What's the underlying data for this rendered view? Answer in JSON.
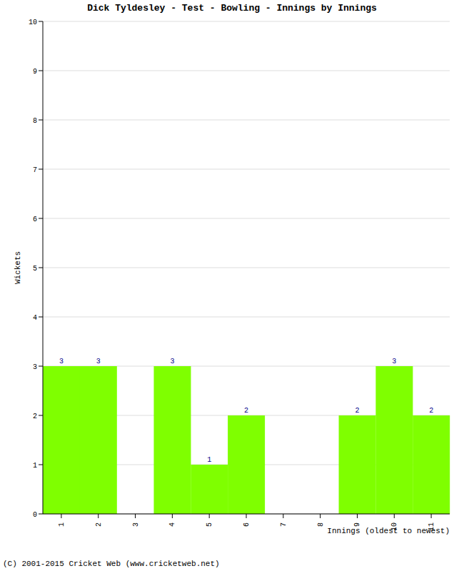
{
  "chart_data": {
    "type": "bar",
    "title": "Dick Tyldesley - Test - Bowling - Innings by Innings",
    "x_label": "Innings (oldest to newest)",
    "y_label": "Wickets",
    "categories": [
      "1",
      "2",
      "3",
      "4",
      "5",
      "6",
      "7",
      "8",
      "9",
      "10",
      "11"
    ],
    "values": [
      3,
      3,
      0,
      3,
      1,
      2,
      0,
      0,
      2,
      3,
      2
    ],
    "color": "#7fff00",
    "ylim": [
      0,
      10
    ],
    "yticks": [
      0,
      1,
      2,
      3,
      4,
      5,
      6,
      7,
      8,
      9,
      10
    ],
    "grid": true,
    "data_labels": true,
    "annotations": [
      "(C) 2001-2015 Cricket Web (www.cricketweb.net)"
    ]
  }
}
